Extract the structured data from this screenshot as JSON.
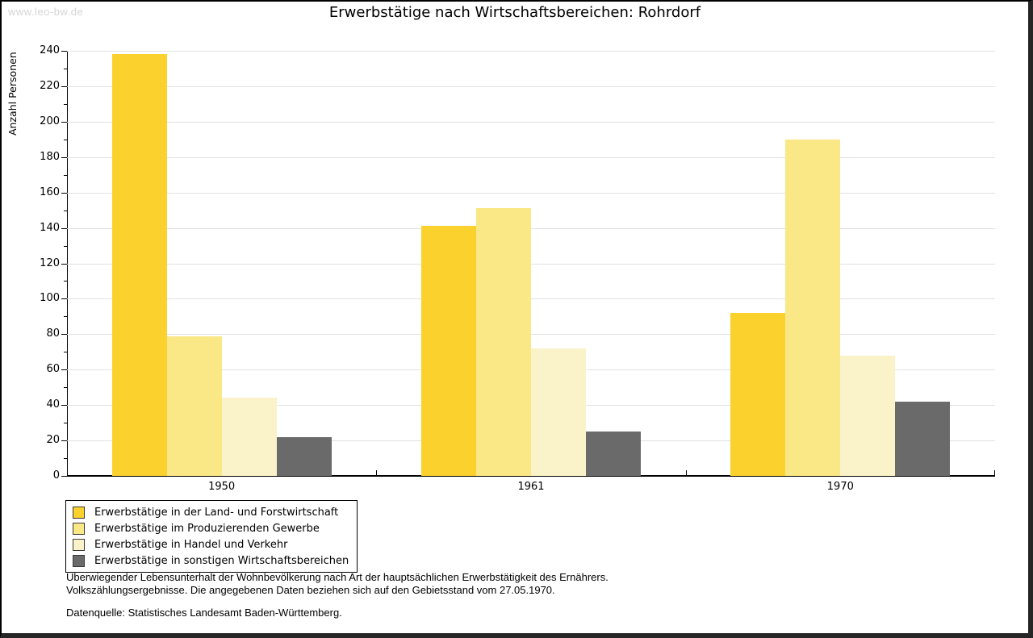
{
  "watermark": "www.leo-bw.de",
  "title": "Erwerbstätige nach Wirtschaftsbereichen: Rohrdorf",
  "chart_data": {
    "type": "bar",
    "title": "Erwerbstätige nach Wirtschaftsbereichen: Rohrdorf",
    "xlabel": "",
    "ylabel": "Anzahl Personen",
    "ylim": [
      0,
      240
    ],
    "ytick_step": 20,
    "ytick_minor_step": 10,
    "grid": true,
    "legend_position": "bottom-left",
    "categories": [
      "1950",
      "1961",
      "1970"
    ],
    "series": [
      {
        "name": "Erwerbstätige in der Land- und Forstwirtschaft",
        "color": "#FBD22D",
        "values": [
          238,
          141,
          92
        ]
      },
      {
        "name": "Erwerbstätige im Produzierenden Gewerbe",
        "color": "#FAE785",
        "values": [
          79,
          151,
          190
        ]
      },
      {
        "name": "Erwerbstätige in Handel und Verkehr",
        "color": "#FAF2C8",
        "values": [
          44,
          72,
          68
        ]
      },
      {
        "name": "Erwerbstätige in sonstigen Wirtschaftsbereichen",
        "color": "#6A6A6A",
        "values": [
          22,
          25,
          42
        ]
      }
    ]
  },
  "footer": {
    "line1": "Überwiegender Lebensunterhalt der Wohnbevölkerung nach Art der hauptsächlichen Erwerbstätigkeit des Ernährers.",
    "line2": "Volkszählungsergebnisse. Die angegebenen Daten beziehen sich auf den Gebietsstand vom 27.05.1970.",
    "source": "Datenquelle: Statistisches Landesamt Baden-Württemberg."
  }
}
